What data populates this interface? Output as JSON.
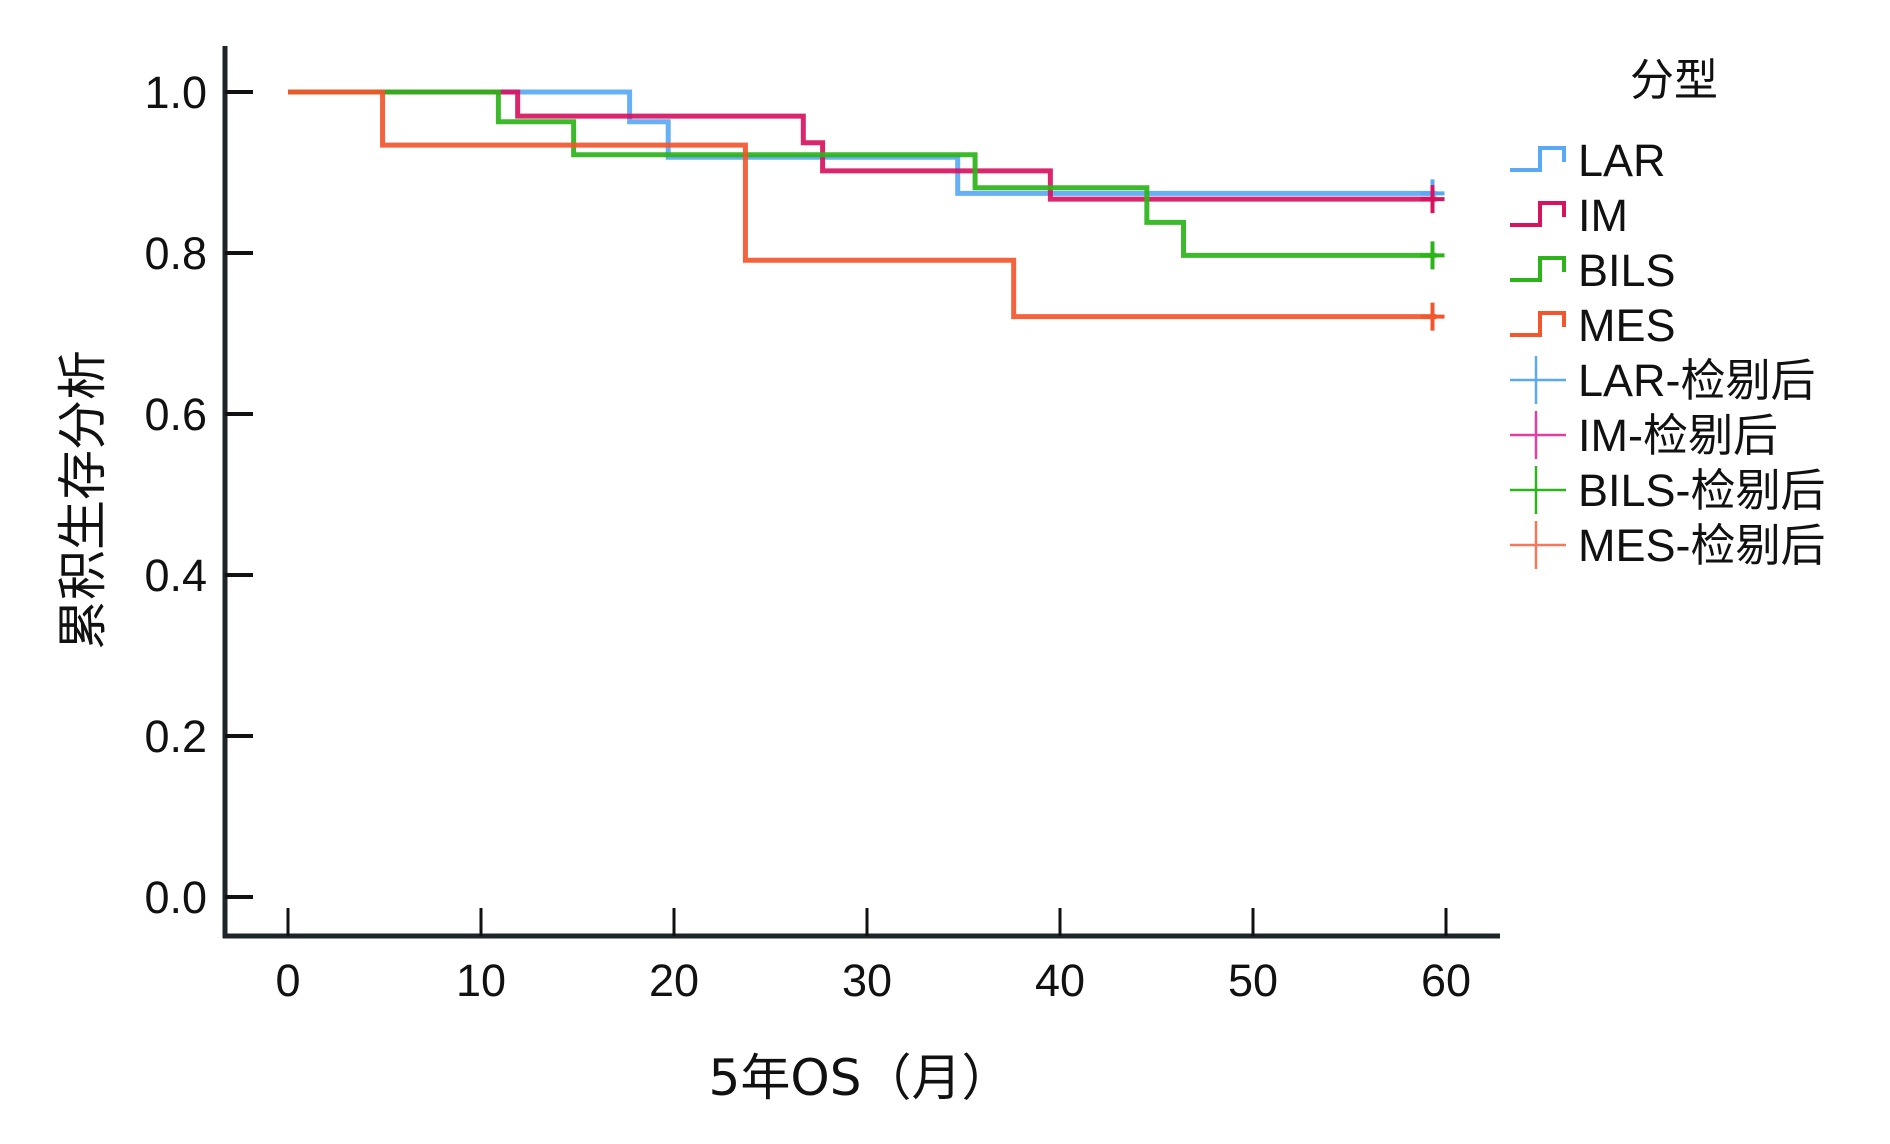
{
  "chart_data": {
    "type": "line",
    "subtype": "kaplan-meier-step",
    "title": "",
    "xlabel": "5年OS（月）",
    "ylabel": "累积生存分析",
    "xlim": [
      0,
      60
    ],
    "ylim": [
      0,
      1.0
    ],
    "xticks": [
      "0",
      "10",
      "20",
      "30",
      "40",
      "50",
      "60"
    ],
    "yticks": [
      "0.0",
      "0.2",
      "0.4",
      "0.6",
      "0.8",
      "1.0"
    ],
    "grid": false,
    "legend": {
      "title": "分型",
      "placement": "right",
      "entries": [
        {
          "label": "LAR",
          "kind": "line",
          "color": "#5aa9f5"
        },
        {
          "label": "IM",
          "kind": "line",
          "color": "#d6135f"
        },
        {
          "label": "BILS",
          "kind": "line",
          "color": "#2cb41a"
        },
        {
          "label": "MES",
          "kind": "line",
          "color": "#f2562c"
        },
        {
          "label": "LAR-检剔后",
          "kind": "censor",
          "color": "#5aa9f5"
        },
        {
          "label": "IM-检剔后",
          "kind": "censor",
          "color": "#e23fa0"
        },
        {
          "label": "BILS-检剔后",
          "kind": "censor",
          "color": "#2cb41a"
        },
        {
          "label": "MES-检剔后",
          "kind": "censor",
          "color": "#f6775a"
        }
      ]
    },
    "series": [
      {
        "name": "LAR",
        "color": "#5aa9f5",
        "steps": [
          [
            0,
            1.0
          ],
          [
            17.7,
            0.963
          ],
          [
            19.7,
            0.919
          ],
          [
            34.7,
            0.874
          ],
          [
            59.5,
            0.874
          ]
        ],
        "censored": [
          [
            59.3,
            0.874
          ]
        ]
      },
      {
        "name": "IM",
        "color": "#d6135f",
        "steps": [
          [
            0,
            1.0
          ],
          [
            11.9,
            0.97
          ],
          [
            26.7,
            0.937
          ],
          [
            27.7,
            0.902
          ],
          [
            39.5,
            0.867
          ],
          [
            59.5,
            0.867
          ]
        ],
        "censored": [
          [
            59.3,
            0.867
          ]
        ]
      },
      {
        "name": "BILS",
        "color": "#2cb41a",
        "steps": [
          [
            0,
            1.0
          ],
          [
            10.9,
            0.963
          ],
          [
            14.8,
            0.922
          ],
          [
            35.6,
            0.881
          ],
          [
            44.5,
            0.838
          ],
          [
            46.4,
            0.797
          ],
          [
            59.5,
            0.797
          ]
        ],
        "censored": [
          [
            59.3,
            0.797
          ]
        ]
      },
      {
        "name": "MES",
        "color": "#f2562c",
        "steps": [
          [
            0,
            1.0
          ],
          [
            4.9,
            0.934
          ],
          [
            23.7,
            0.791
          ],
          [
            37.6,
            0.721
          ],
          [
            59.5,
            0.721
          ]
        ],
        "censored": [
          [
            59.3,
            0.721
          ]
        ]
      }
    ]
  }
}
